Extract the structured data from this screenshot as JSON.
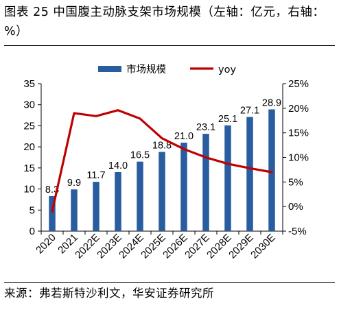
{
  "figure": {
    "title": "图表 25  中国腹主动脉支架市场规模（左轴：亿元，右轴：%）",
    "source": "来源：弗若斯特沙利文，华安证券研究所"
  },
  "colors": {
    "bar": "#2a5d9f",
    "line": "#c00000"
  },
  "chart_data": {
    "type": "bar",
    "categories": [
      "2020",
      "2021",
      "2022E",
      "2023E",
      "2024E",
      "2025E",
      "2026E",
      "2027E",
      "2028E",
      "2029E",
      "2030E"
    ],
    "series": [
      {
        "name": "市场规模",
        "type": "bar",
        "axis": "left",
        "values": [
          8.3,
          9.9,
          11.7,
          14.0,
          16.5,
          18.8,
          21.0,
          23.1,
          25.1,
          27.1,
          28.9
        ]
      },
      {
        "name": "yoy",
        "type": "line",
        "axis": "right",
        "values": [
          -1.0,
          19.0,
          18.4,
          19.6,
          17.9,
          13.9,
          11.7,
          10.0,
          8.7,
          7.8,
          7.0
        ]
      }
    ],
    "y_left": {
      "range": [
        0,
        35
      ],
      "ticks": [
        "0",
        "5",
        "10",
        "15",
        "20",
        "25",
        "30",
        "35"
      ]
    },
    "y_right": {
      "range": [
        -5,
        25
      ],
      "ticks": [
        "-5%",
        "0%",
        "5%",
        "10%",
        "15%",
        "20%",
        "25%"
      ]
    },
    "bar_labels": [
      "8.3",
      "9.9",
      "11.7",
      "14.0",
      "16.5",
      "18.8",
      "21.0",
      "23.1",
      "25.1",
      "27.1",
      "28.9"
    ],
    "legend": {
      "position": "top"
    },
    "grid": false
  }
}
